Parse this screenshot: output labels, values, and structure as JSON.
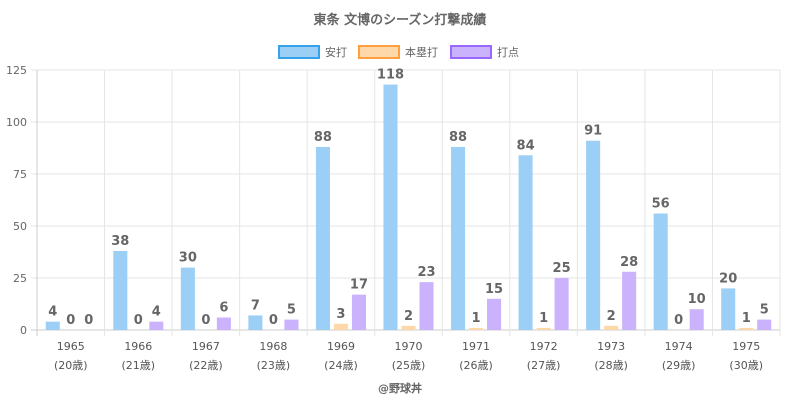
{
  "chart_data": {
    "type": "bar",
    "title": "東条 文博のシーズン打撃成績",
    "categories": [
      "1965",
      "1966",
      "1967",
      "1968",
      "1969",
      "1970",
      "1971",
      "1972",
      "1973",
      "1974",
      "1975"
    ],
    "ages": [
      "(20歳)",
      "(21歳)",
      "(22歳)",
      "(23歳)",
      "(24歳)",
      "(25歳)",
      "(26歳)",
      "(27歳)",
      "(28歳)",
      "(29歳)",
      "(30歳)"
    ],
    "series": [
      {
        "name": "安打",
        "fill": "#9ccff5",
        "stroke": "#36a2eb",
        "values": [
          4,
          38,
          30,
          7,
          88,
          118,
          88,
          84,
          91,
          56,
          20
        ]
      },
      {
        "name": "本塁打",
        "fill": "#ffd8aa",
        "stroke": "#ff9f40",
        "values": [
          0,
          0,
          0,
          0,
          3,
          2,
          1,
          1,
          2,
          0,
          1
        ]
      },
      {
        "name": "打点",
        "fill": "#cbb2fc",
        "stroke": "#9966ff",
        "values": [
          0,
          4,
          6,
          5,
          17,
          23,
          15,
          25,
          28,
          10,
          5
        ]
      }
    ],
    "ylim": [
      0,
      125
    ],
    "yticks": [
      0,
      25,
      50,
      75,
      100,
      125
    ],
    "grid": true,
    "legend": "top-center",
    "xlabel": "",
    "ylabel": ""
  },
  "credit": "@野球丼"
}
